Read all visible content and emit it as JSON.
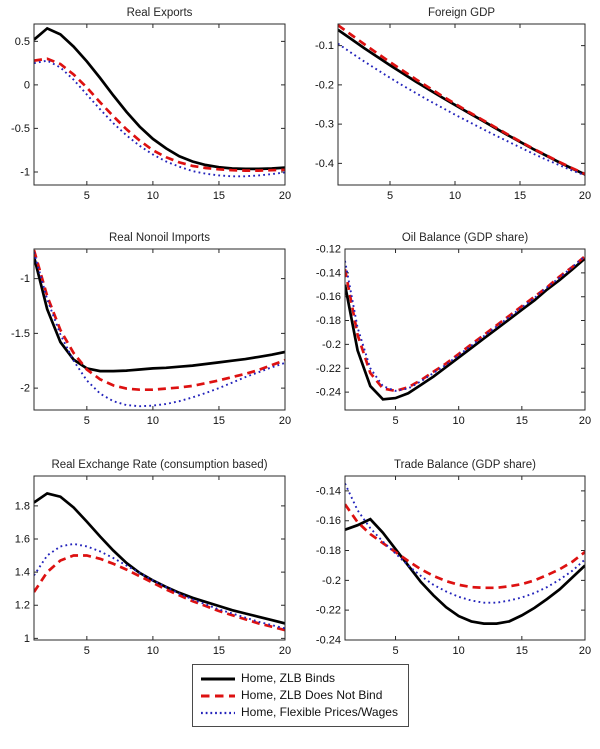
{
  "figure": {
    "background": "#ffffff"
  },
  "legend": {
    "entries": [
      {
        "label": "Home, ZLB Binds",
        "color": "#000000",
        "style": "solid"
      },
      {
        "label": "Home, ZLB Does Not Bind",
        "color": "#dd1111",
        "style": "dashed"
      },
      {
        "label": "Home, Flexible Prices/Wages",
        "color": "#2323bb",
        "style": "dotted"
      }
    ]
  },
  "chart_data": [
    {
      "type": "line",
      "title": "Real Exports",
      "x": [
        1,
        2,
        3,
        4,
        5,
        6,
        7,
        8,
        9,
        10,
        11,
        12,
        13,
        14,
        15,
        16,
        17,
        18,
        19,
        20
      ],
      "xlim": [
        1,
        20
      ],
      "xticks": [
        5,
        10,
        15,
        20
      ],
      "ylim": [
        -1.15,
        0.7
      ],
      "yticks": [
        0.5,
        0,
        -0.5,
        -1
      ],
      "series": [
        {
          "name": "Home, ZLB Binds",
          "values": [
            0.52,
            0.65,
            0.58,
            0.44,
            0.27,
            0.08,
            -0.12,
            -0.31,
            -0.48,
            -0.62,
            -0.73,
            -0.82,
            -0.88,
            -0.92,
            -0.945,
            -0.96,
            -0.965,
            -0.965,
            -0.96,
            -0.95
          ]
        },
        {
          "name": "Home, ZLB Does Not Bind",
          "values": [
            0.28,
            0.3,
            0.24,
            0.12,
            -0.03,
            -0.2,
            -0.36,
            -0.51,
            -0.64,
            -0.75,
            -0.83,
            -0.89,
            -0.93,
            -0.955,
            -0.97,
            -0.98,
            -0.985,
            -0.985,
            -0.98,
            -0.975
          ]
        },
        {
          "name": "Home, Flexible Prices/Wages",
          "values": [
            0.25,
            0.28,
            0.2,
            0.06,
            -0.11,
            -0.28,
            -0.44,
            -0.58,
            -0.7,
            -0.8,
            -0.88,
            -0.94,
            -0.99,
            -1.02,
            -1.04,
            -1.05,
            -1.05,
            -1.04,
            -1.025,
            -1.005
          ]
        }
      ]
    },
    {
      "type": "line",
      "title": "Foreign GDP",
      "x": [
        1,
        2,
        3,
        4,
        5,
        6,
        7,
        8,
        9,
        10,
        11,
        12,
        13,
        14,
        15,
        16,
        17,
        18,
        19,
        20
      ],
      "xlim": [
        1,
        20
      ],
      "xticks": [
        5,
        10,
        15,
        20
      ],
      "ylim": [
        -0.455,
        -0.045
      ],
      "yticks": [
        -0.1,
        -0.2,
        -0.3,
        -0.4
      ],
      "series": [
        {
          "name": "Home, ZLB Binds",
          "values": [
            -0.06,
            -0.083,
            -0.106,
            -0.128,
            -0.15,
            -0.171,
            -0.192,
            -0.212,
            -0.232,
            -0.251,
            -0.27,
            -0.289,
            -0.308,
            -0.327,
            -0.345,
            -0.363,
            -0.38,
            -0.397,
            -0.413,
            -0.428
          ]
        },
        {
          "name": "Home, ZLB Does Not Bind",
          "values": [
            -0.048,
            -0.072,
            -0.096,
            -0.119,
            -0.142,
            -0.164,
            -0.186,
            -0.207,
            -0.228,
            -0.248,
            -0.268,
            -0.287,
            -0.306,
            -0.325,
            -0.344,
            -0.362,
            -0.379,
            -0.396,
            -0.412,
            -0.427
          ]
        },
        {
          "name": "Home, Flexible Prices/Wages",
          "values": [
            -0.095,
            -0.118,
            -0.14,
            -0.161,
            -0.182,
            -0.202,
            -0.221,
            -0.24,
            -0.258,
            -0.276,
            -0.293,
            -0.31,
            -0.327,
            -0.343,
            -0.359,
            -0.375,
            -0.39,
            -0.404,
            -0.418,
            -0.43
          ]
        }
      ]
    },
    {
      "type": "line",
      "title": "Real Nonoil Imports",
      "x": [
        1,
        2,
        3,
        4,
        5,
        6,
        7,
        8,
        9,
        10,
        11,
        12,
        13,
        14,
        15,
        16,
        17,
        18,
        19,
        20
      ],
      "xlim": [
        1,
        20
      ],
      "xticks": [
        5,
        10,
        15,
        20
      ],
      "ylim": [
        -2.2,
        -0.73
      ],
      "yticks": [
        -1,
        -1.5,
        -2
      ],
      "series": [
        {
          "name": "Home, ZLB Binds",
          "values": [
            -0.8,
            -1.28,
            -1.58,
            -1.74,
            -1.82,
            -1.845,
            -1.845,
            -1.84,
            -1.83,
            -1.82,
            -1.815,
            -1.805,
            -1.795,
            -1.78,
            -1.765,
            -1.75,
            -1.735,
            -1.715,
            -1.695,
            -1.67
          ]
        },
        {
          "name": "Home, ZLB Does Not Bind",
          "values": [
            -0.74,
            -1.16,
            -1.47,
            -1.68,
            -1.83,
            -1.92,
            -1.975,
            -2.005,
            -2.015,
            -2.015,
            -2.005,
            -1.995,
            -1.98,
            -1.955,
            -1.93,
            -1.9,
            -1.87,
            -1.835,
            -1.79,
            -1.745
          ]
        },
        {
          "name": "Home, Flexible Prices/Wages",
          "values": [
            -0.76,
            -1.19,
            -1.51,
            -1.75,
            -1.93,
            -2.05,
            -2.12,
            -2.155,
            -2.165,
            -2.16,
            -2.145,
            -2.12,
            -2.085,
            -2.045,
            -2.0,
            -1.95,
            -1.9,
            -1.855,
            -1.81,
            -1.77
          ]
        }
      ]
    },
    {
      "type": "line",
      "title": "Oil Balance (GDP share)",
      "x": [
        1,
        2,
        3,
        4,
        5,
        6,
        7,
        8,
        9,
        10,
        11,
        12,
        13,
        14,
        15,
        16,
        17,
        18,
        19,
        20
      ],
      "xlim": [
        1,
        20
      ],
      "xticks": [
        5,
        10,
        15,
        20
      ],
      "ylim": [
        -0.255,
        -0.12
      ],
      "yticks": [
        -0.12,
        -0.14,
        -0.16,
        -0.18,
        -0.2,
        -0.22,
        -0.24
      ],
      "series": [
        {
          "name": "Home, ZLB Binds",
          "values": [
            -0.15,
            -0.205,
            -0.235,
            -0.246,
            -0.245,
            -0.241,
            -0.234,
            -0.227,
            -0.219,
            -0.211,
            -0.203,
            -0.195,
            -0.187,
            -0.179,
            -0.171,
            -0.163,
            -0.154,
            -0.146,
            -0.137,
            -0.128
          ]
        },
        {
          "name": "Home, ZLB Does Not Bind",
          "values": [
            -0.137,
            -0.192,
            -0.224,
            -0.237,
            -0.239,
            -0.236,
            -0.23,
            -0.223,
            -0.216,
            -0.208,
            -0.2,
            -0.192,
            -0.184,
            -0.176,
            -0.168,
            -0.16,
            -0.152,
            -0.143,
            -0.135,
            -0.126
          ]
        },
        {
          "name": "Home, Flexible Prices/Wages",
          "values": [
            -0.13,
            -0.186,
            -0.22,
            -0.235,
            -0.239,
            -0.237,
            -0.231,
            -0.224,
            -0.217,
            -0.209,
            -0.201,
            -0.193,
            -0.185,
            -0.177,
            -0.169,
            -0.161,
            -0.152,
            -0.144,
            -0.135,
            -0.126
          ]
        }
      ]
    },
    {
      "type": "line",
      "title": "Real Exchange Rate (consumption based)",
      "x": [
        1,
        2,
        3,
        4,
        5,
        6,
        7,
        8,
        9,
        10,
        11,
        12,
        13,
        14,
        15,
        16,
        17,
        18,
        19,
        20
      ],
      "xlim": [
        1,
        20
      ],
      "xticks": [
        5,
        10,
        15,
        20
      ],
      "ylim": [
        0.99,
        1.98
      ],
      "yticks": [
        1,
        1.2,
        1.4,
        1.6,
        1.8
      ],
      "series": [
        {
          "name": "Home, ZLB Binds",
          "values": [
            1.82,
            1.875,
            1.855,
            1.79,
            1.705,
            1.615,
            1.53,
            1.455,
            1.395,
            1.35,
            1.31,
            1.275,
            1.245,
            1.22,
            1.195,
            1.17,
            1.15,
            1.13,
            1.11,
            1.09
          ]
        },
        {
          "name": "Home, ZLB Does Not Bind",
          "values": [
            1.28,
            1.4,
            1.47,
            1.5,
            1.5,
            1.48,
            1.45,
            1.415,
            1.375,
            1.335,
            1.295,
            1.26,
            1.225,
            1.195,
            1.165,
            1.14,
            1.115,
            1.09,
            1.07,
            1.05
          ]
        },
        {
          "name": "Home, Flexible Prices/Wages",
          "values": [
            1.38,
            1.5,
            1.555,
            1.57,
            1.555,
            1.525,
            1.485,
            1.44,
            1.395,
            1.35,
            1.31,
            1.27,
            1.235,
            1.205,
            1.175,
            1.15,
            1.125,
            1.1,
            1.08,
            1.06
          ]
        }
      ]
    },
    {
      "type": "line",
      "title": "Trade Balance (GDP share)",
      "x": [
        1,
        2,
        3,
        4,
        5,
        6,
        7,
        8,
        9,
        10,
        11,
        12,
        13,
        14,
        15,
        16,
        17,
        18,
        19,
        20
      ],
      "xlim": [
        1,
        20
      ],
      "xticks": [
        5,
        10,
        15,
        20
      ],
      "ylim": [
        -0.24,
        -0.13
      ],
      "yticks": [
        -0.14,
        -0.16,
        -0.18,
        -0.2,
        -0.22,
        -0.24
      ],
      "series": [
        {
          "name": "Home, ZLB Binds",
          "values": [
            -0.166,
            -0.163,
            -0.159,
            -0.168,
            -0.179,
            -0.19,
            -0.201,
            -0.21,
            -0.218,
            -0.224,
            -0.2275,
            -0.229,
            -0.229,
            -0.2275,
            -0.2235,
            -0.2185,
            -0.2125,
            -0.206,
            -0.198,
            -0.19
          ]
        },
        {
          "name": "Home, ZLB Does Not Bind",
          "values": [
            -0.149,
            -0.161,
            -0.169,
            -0.175,
            -0.181,
            -0.187,
            -0.1925,
            -0.197,
            -0.2005,
            -0.203,
            -0.2045,
            -0.205,
            -0.205,
            -0.204,
            -0.2025,
            -0.2,
            -0.1965,
            -0.1925,
            -0.1875,
            -0.181
          ]
        },
        {
          "name": "Home, Flexible Prices/Wages",
          "values": [
            -0.135,
            -0.153,
            -0.165,
            -0.174,
            -0.182,
            -0.19,
            -0.197,
            -0.203,
            -0.2075,
            -0.211,
            -0.2135,
            -0.215,
            -0.215,
            -0.2135,
            -0.2115,
            -0.2085,
            -0.2045,
            -0.1995,
            -0.1935,
            -0.186
          ]
        }
      ]
    }
  ]
}
